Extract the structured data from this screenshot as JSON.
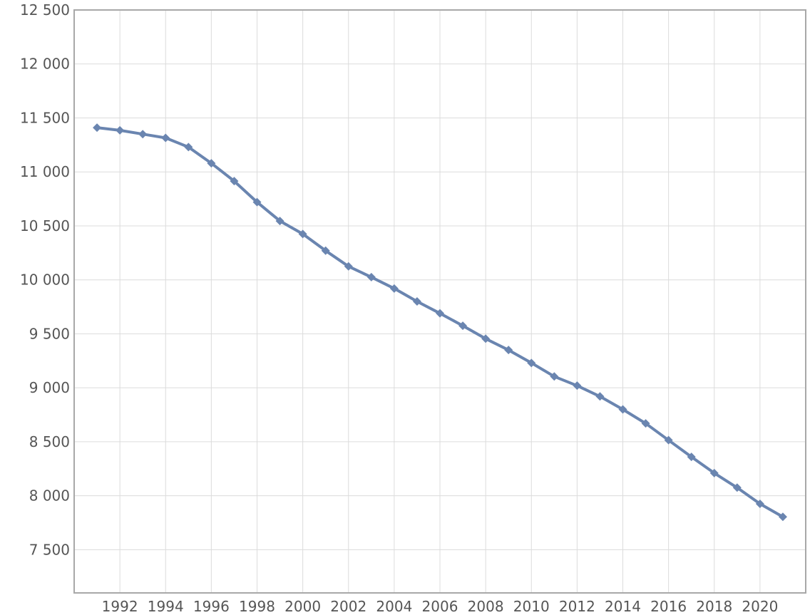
{
  "chart_data": {
    "type": "line",
    "title": "",
    "xlabel": "",
    "ylabel": "",
    "x": [
      1991,
      1992,
      1993,
      1994,
      1995,
      1996,
      1997,
      1998,
      1999,
      2000,
      2001,
      2002,
      2003,
      2004,
      2005,
      2006,
      2007,
      2008,
      2009,
      2010,
      2011,
      2012,
      2013,
      2014,
      2015,
      2016,
      2017,
      2018,
      2019,
      2020,
      2021
    ],
    "series": [
      {
        "values": [
          11410,
          11385,
          11350,
          11315,
          11230,
          11080,
          10915,
          10720,
          10545,
          10425,
          10270,
          10125,
          10025,
          9920,
          9800,
          9690,
          9575,
          9455,
          9350,
          9230,
          9105,
          9020,
          8920,
          8800,
          8670,
          8515,
          8360,
          8210,
          8075,
          7925,
          7805
        ],
        "color": "#6a85b0"
      }
    ],
    "xlim": [
      1990,
      2022
    ],
    "ylim": [
      7100,
      12500
    ],
    "x_ticks": [
      "1992",
      "1994",
      "1996",
      "1998",
      "2000",
      "2002",
      "2004",
      "2006",
      "2008",
      "2010",
      "2012",
      "2014",
      "2016",
      "2018",
      "2020"
    ],
    "y_ticks": [
      "7 500",
      "8 000",
      "8 500",
      "9 000",
      "9 500",
      "10 000",
      "10 500",
      "11 000",
      "11 500",
      "12 000",
      "12 500"
    ],
    "grid": true,
    "legend": "none"
  }
}
